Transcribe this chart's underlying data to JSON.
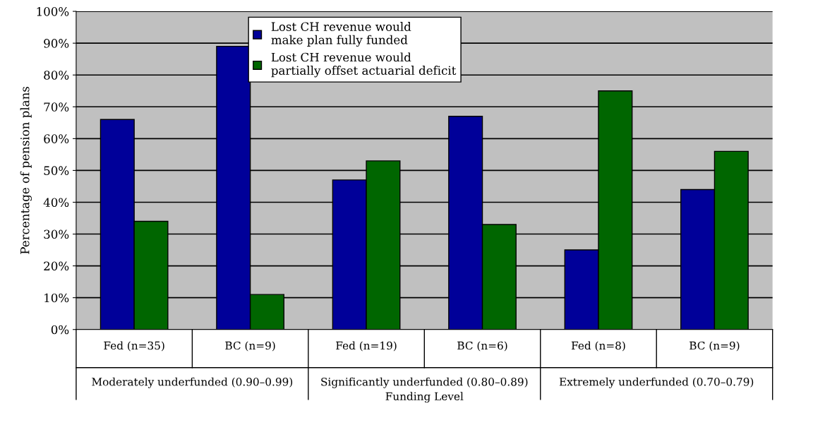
{
  "chart_data": {
    "type": "bar",
    "categories": [
      "Fed (n=35)",
      "BC (n=9)",
      "Fed (n=19)",
      "BC (n=6)",
      "Fed (n=8)",
      "BC (n=9)"
    ],
    "series": [
      {
        "name": "Lost CH revenue would\nmake plan fully funded",
        "color": "#000099",
        "values": [
          66,
          89,
          47,
          67,
          25,
          44
        ]
      },
      {
        "name": "Lost CH revenue would\npartially offset actuarial deficit",
        "color": "#006600",
        "values": [
          34,
          11,
          53,
          33,
          75,
          56
        ]
      }
    ],
    "annotations": [
      "Moderately underfunded (0.90–0.99)",
      "Significantly underfunded (0.80–0.89)",
      "Extremely underfunded (0.70–0.79)"
    ],
    "xlabel": "Funding Level",
    "ylabel": "Percentage of pension plans",
    "ylim": [
      0,
      100
    ],
    "yticks": [
      {
        "value": 0,
        "label": "0%"
      },
      {
        "value": 10,
        "label": "10%"
      },
      {
        "value": 20,
        "label": "20%"
      },
      {
        "value": 30,
        "label": "30%"
      },
      {
        "value": 40,
        "label": "40%"
      },
      {
        "value": 50,
        "label": "50%"
      },
      {
        "value": 60,
        "label": "60%"
      },
      {
        "value": 70,
        "label": "70%"
      },
      {
        "value": 80,
        "label": "80%"
      },
      {
        "value": 90,
        "label": "90%"
      },
      {
        "value": 100,
        "label": "100%"
      }
    ],
    "grid": "y",
    "legend": "top"
  }
}
